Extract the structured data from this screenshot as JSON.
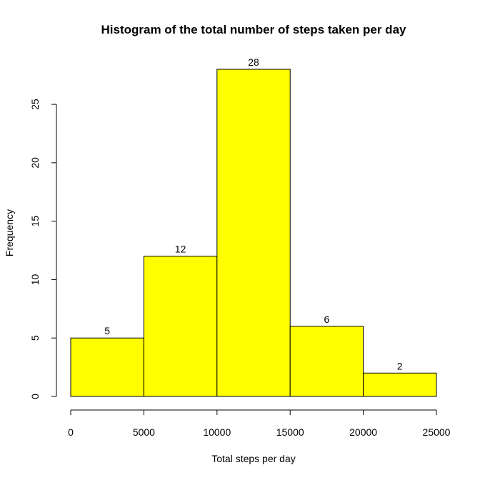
{
  "chart_data": {
    "type": "bar",
    "title": "Histogram of the total number of steps taken per day",
    "xlabel": "Total steps per day",
    "ylabel": "Frequency",
    "bins": [
      [
        0,
        5000
      ],
      [
        5000,
        10000
      ],
      [
        10000,
        15000
      ],
      [
        15000,
        20000
      ],
      [
        20000,
        25000
      ]
    ],
    "values": [
      5,
      12,
      28,
      6,
      2
    ],
    "data_labels": [
      "5",
      "12",
      "28",
      "6",
      "2"
    ],
    "xlim": [
      0,
      25000
    ],
    "ylim": [
      0,
      28
    ],
    "x_ticks": [
      0,
      5000,
      10000,
      15000,
      20000,
      25000
    ],
    "x_tick_labels": [
      "0",
      "5000",
      "10000",
      "15000",
      "20000",
      "25000"
    ],
    "y_ticks": [
      0,
      5,
      10,
      15,
      20,
      25
    ],
    "y_tick_labels": [
      "0",
      "5",
      "10",
      "15",
      "20",
      "25"
    ],
    "bar_color": "#ffff00",
    "bar_border_color": "#000000",
    "grid": false,
    "legend": "none"
  }
}
